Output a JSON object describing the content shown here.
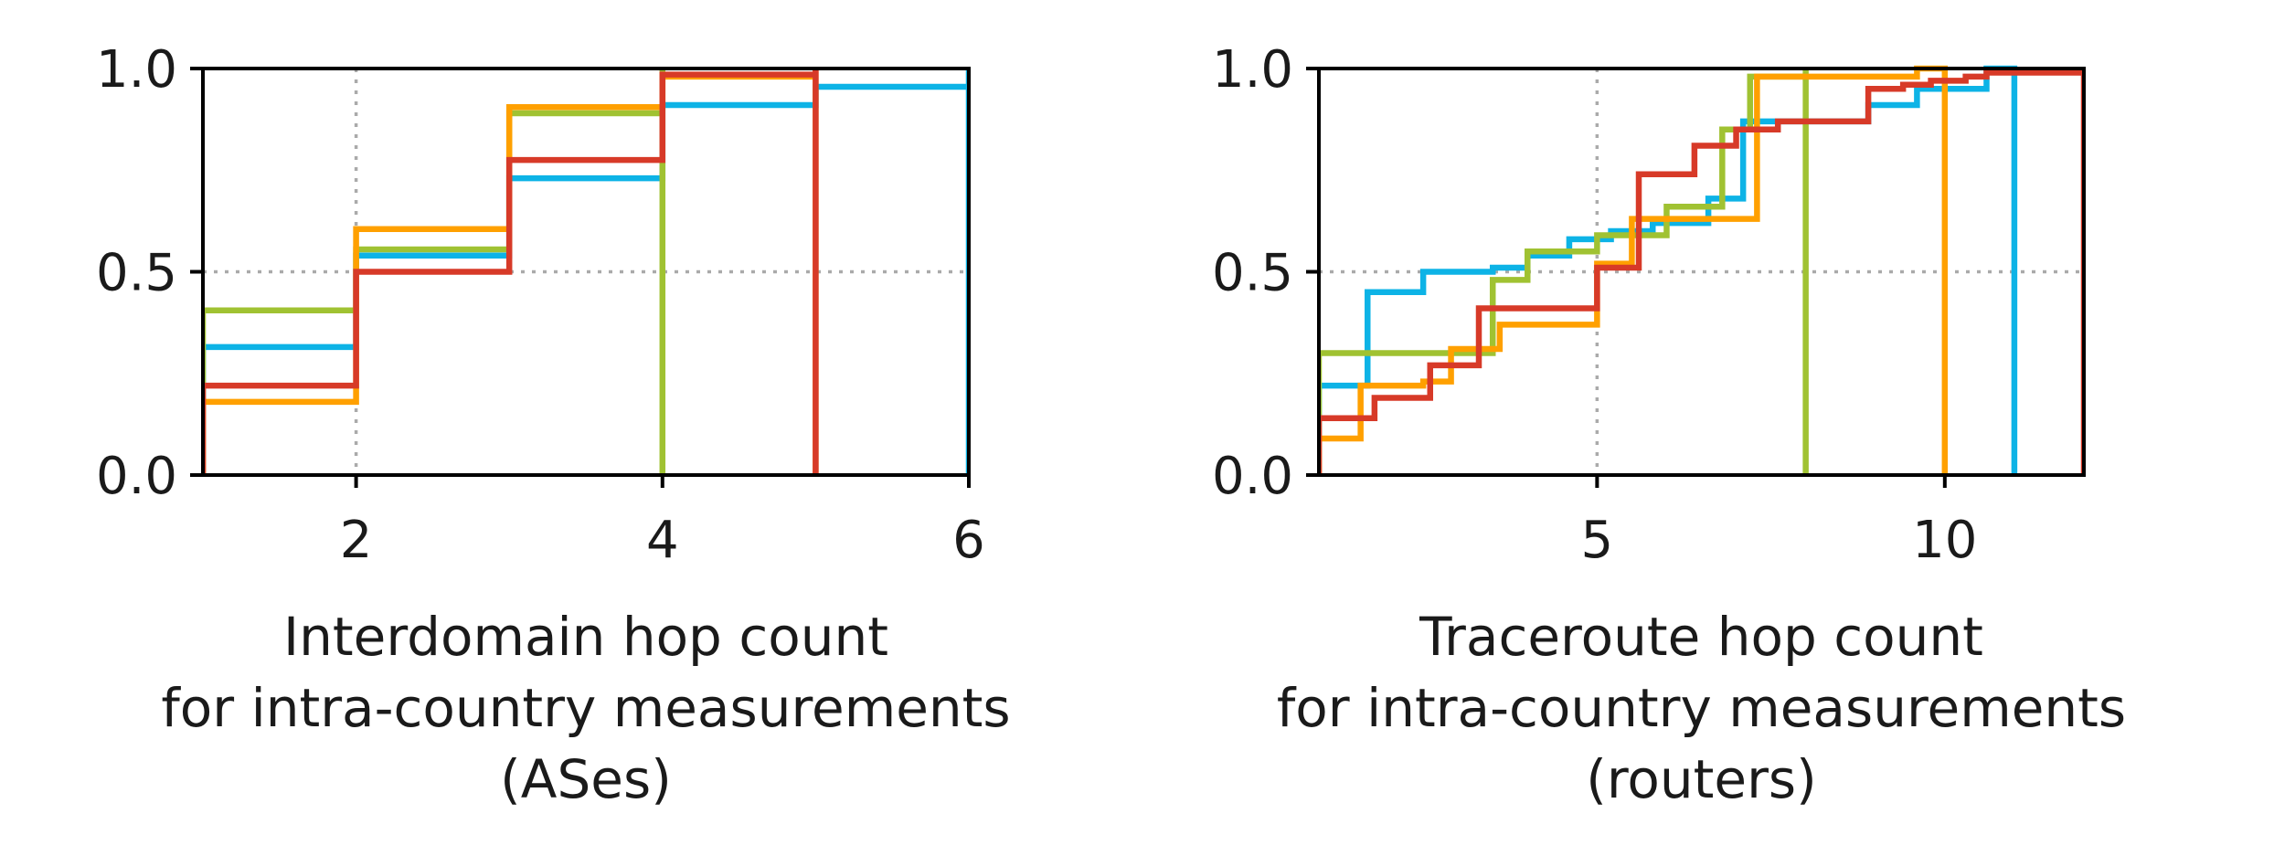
{
  "chart_data": [
    {
      "type": "step-cdf",
      "xlim": [
        1,
        6
      ],
      "ylim": [
        0,
        1
      ],
      "xticks": [
        2,
        4,
        6
      ],
      "yticks": [
        0.0,
        0.5,
        1.0
      ],
      "xtick_labels": [
        "2",
        "4",
        "6"
      ],
      "ytick_labels": [
        "0.0",
        "0.5",
        "1.0"
      ],
      "grid": true,
      "legend": "none",
      "xlabel_lines": [
        "Interdomain hop count",
        "for intra-country measurements",
        "(ASes)"
      ],
      "series": [
        {
          "color": "#0db3e6",
          "x": [
            1,
            2,
            3,
            4,
            5,
            6
          ],
          "y": [
            0.315,
            0.54,
            0.73,
            0.91,
            0.955,
            1.0
          ]
        },
        {
          "color": "#a0c232",
          "x": [
            1,
            2,
            3,
            4
          ],
          "y": [
            0.405,
            0.555,
            0.89,
            1.0
          ]
        },
        {
          "color": "#ffa000",
          "x": [
            1,
            2,
            3,
            4,
            5
          ],
          "y": [
            0.18,
            0.605,
            0.905,
            0.98,
            1.0
          ]
        },
        {
          "color": "#d73a28",
          "x": [
            1,
            2,
            3,
            4,
            5
          ],
          "y": [
            0.22,
            0.5,
            0.775,
            0.985,
            1.0
          ]
        }
      ]
    },
    {
      "type": "step-cdf",
      "xlim": [
        1,
        12
      ],
      "ylim": [
        0,
        1
      ],
      "xticks": [
        5,
        10
      ],
      "yticks": [
        0.0,
        0.5,
        1.0
      ],
      "xtick_labels": [
        "5",
        "10"
      ],
      "ytick_labels": [
        "0.0",
        "0.5",
        "1.0"
      ],
      "grid": true,
      "legend": "none",
      "xlabel_lines": [
        "Traceroute hop count",
        "for intra-country measurements",
        "(routers)"
      ],
      "series": [
        {
          "color": "#0db3e6",
          "x": [
            1,
            1.1,
            1.7,
            2.5,
            3.5,
            4,
            4.6,
            5.2,
            5.8,
            6.6,
            7.1,
            7.5,
            8.9,
            9.6,
            10.6,
            11
          ],
          "y": [
            0.22,
            0.22,
            0.45,
            0.5,
            0.51,
            0.54,
            0.58,
            0.6,
            0.62,
            0.68,
            0.87,
            0.87,
            0.91,
            0.95,
            1.0,
            1.0
          ]
        },
        {
          "color": "#a0c232",
          "x": [
            1,
            2.9,
            3.5,
            4,
            5,
            6,
            6.8,
            7.2,
            8
          ],
          "y": [
            0.3,
            0.3,
            0.48,
            0.55,
            0.59,
            0.66,
            0.85,
            0.98,
            1.0
          ]
        },
        {
          "color": "#ffa000",
          "x": [
            1,
            1.6,
            2.5,
            2.9,
            3.6,
            5,
            5.5,
            6.2,
            7.3,
            7.9,
            9.6,
            10
          ],
          "y": [
            0.09,
            0.22,
            0.23,
            0.31,
            0.37,
            0.52,
            0.63,
            0.63,
            0.98,
            0.98,
            1.0,
            1.0
          ]
        },
        {
          "color": "#d73a28",
          "x": [
            1,
            1.3,
            1.8,
            2.6,
            3.3,
            5,
            5.6,
            6.4,
            7,
            7.6,
            8.9,
            9.4,
            9.8,
            10.3,
            10.6,
            12
          ],
          "y": [
            0.14,
            0.14,
            0.19,
            0.27,
            0.41,
            0.51,
            0.74,
            0.81,
            0.85,
            0.87,
            0.95,
            0.96,
            0.97,
            0.98,
            0.99,
            1.0
          ]
        }
      ]
    }
  ]
}
